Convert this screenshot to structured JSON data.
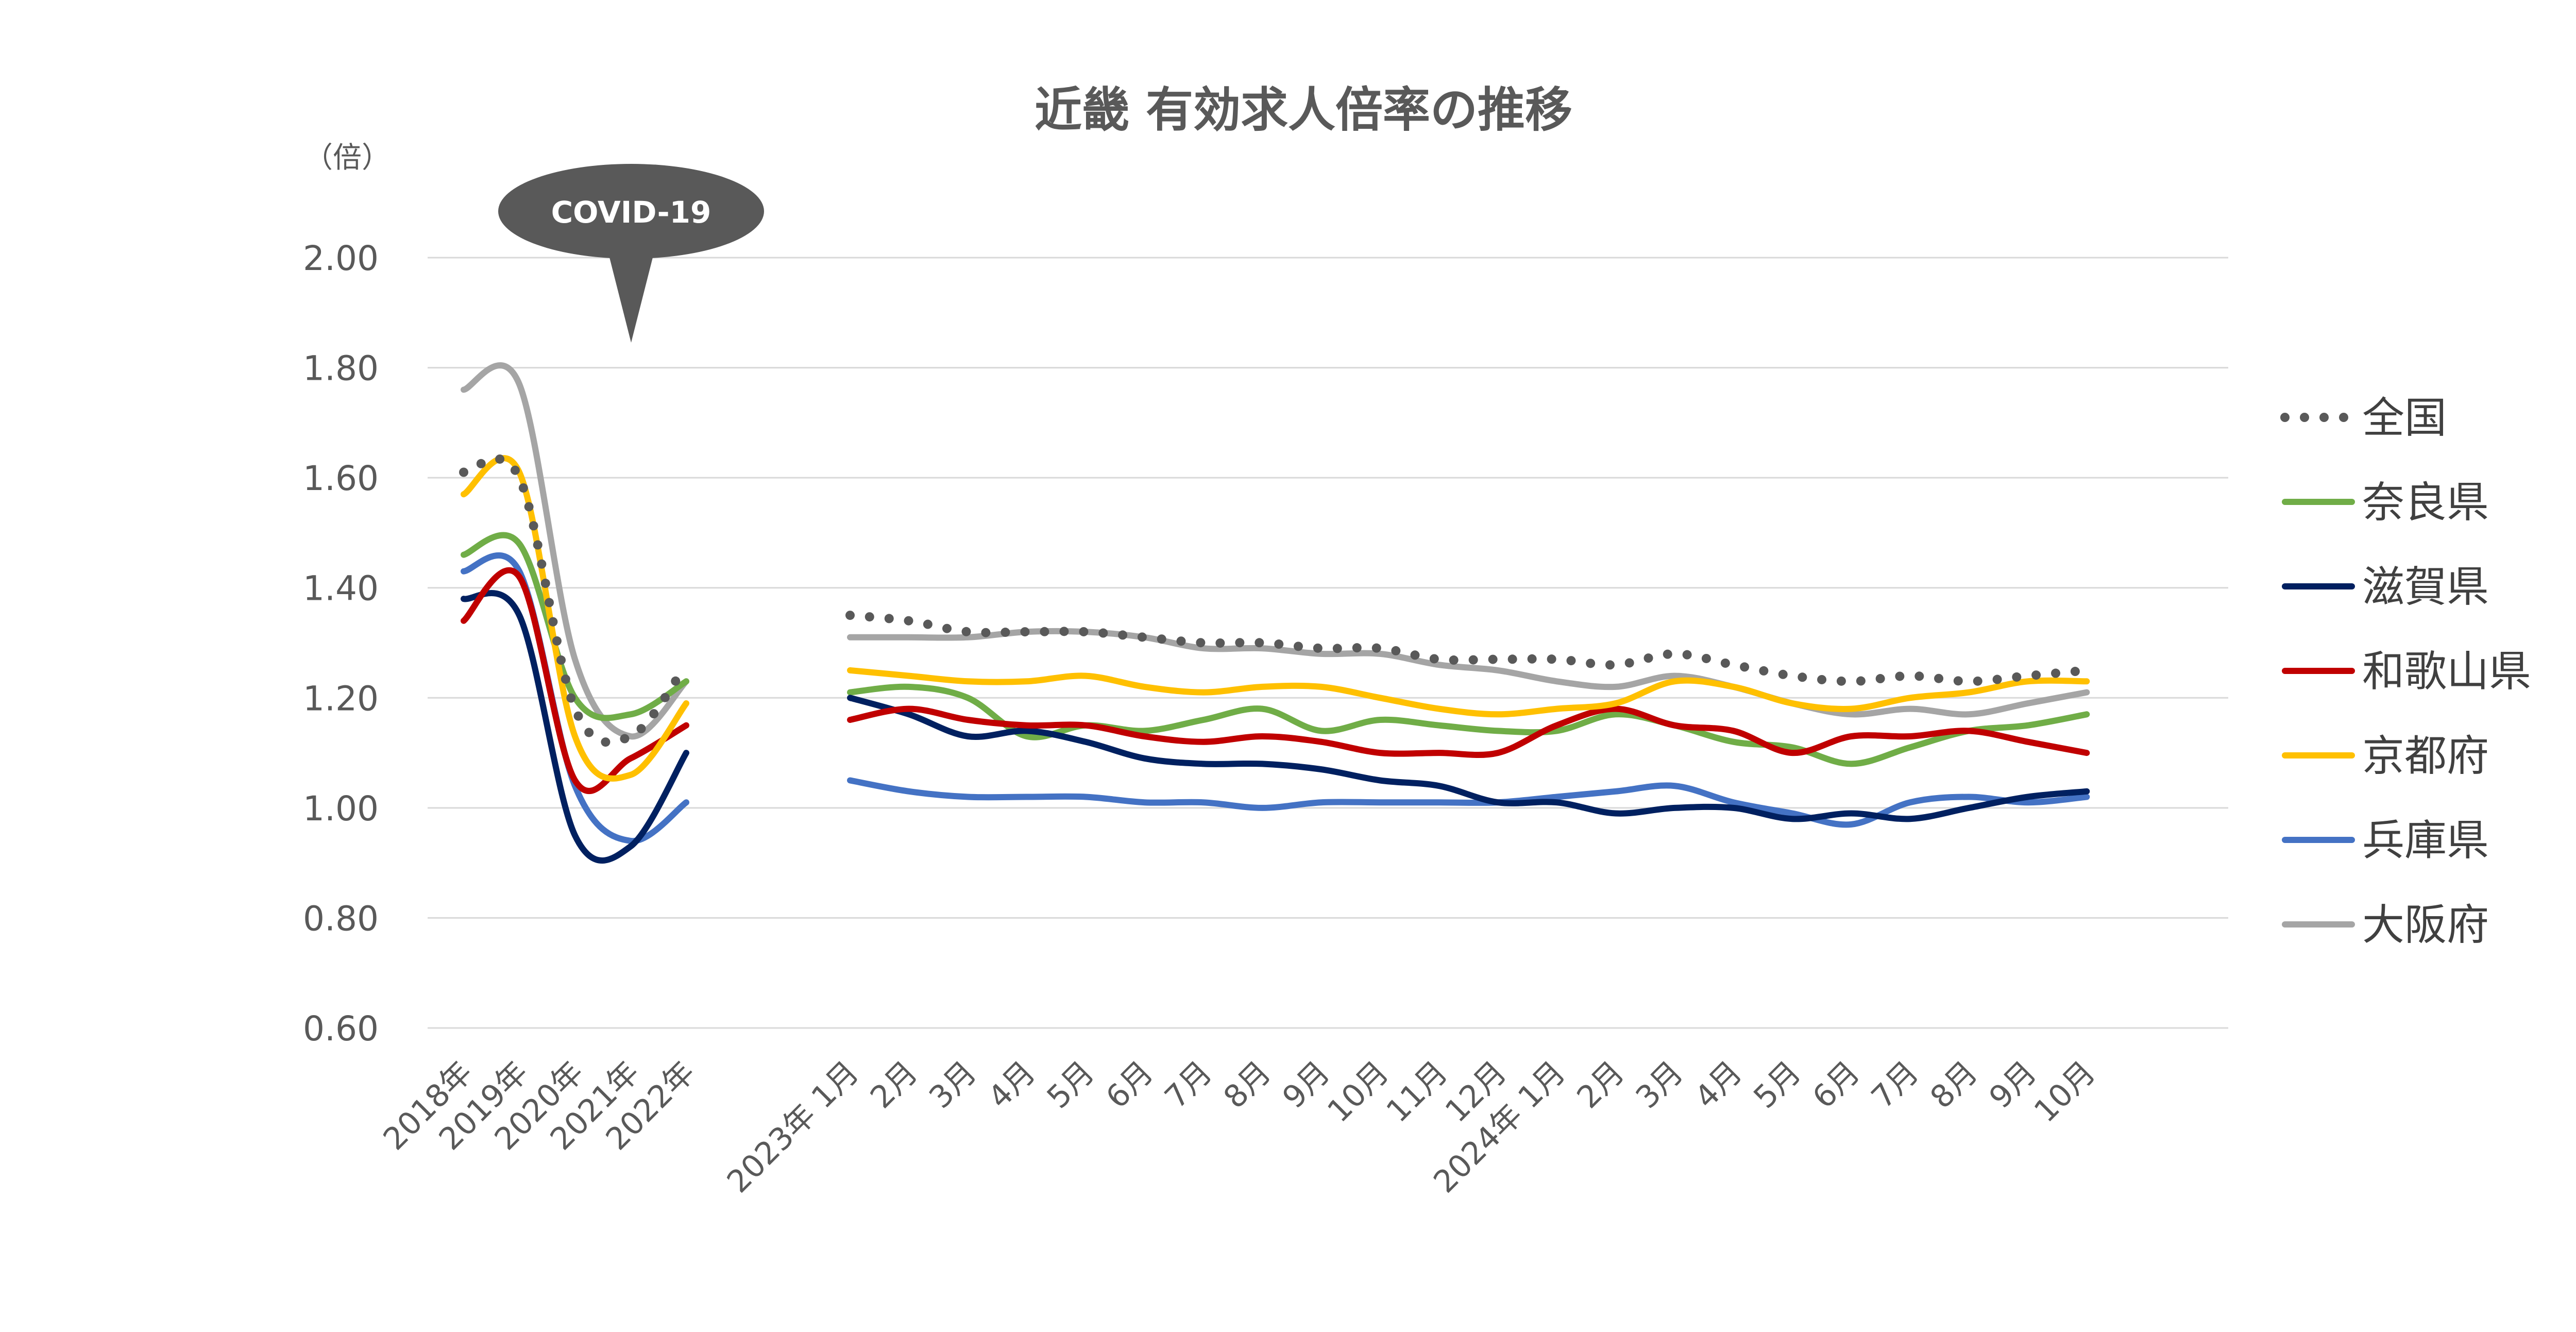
{
  "chart_data": {
    "type": "line",
    "title": "近畿 有効求人倍率の推移",
    "y_unit_label": "（倍）",
    "ylim": [
      0.6,
      2.0
    ],
    "yticks": [
      "2.00",
      "1.80",
      "1.60",
      "1.40",
      "1.20",
      "1.00",
      "0.80",
      "0.60"
    ],
    "ytick_values": [
      2.0,
      1.8,
      1.6,
      1.4,
      1.2,
      1.0,
      0.8,
      0.6
    ],
    "grid": true,
    "legend_position": "right",
    "annotation": "COVID-19",
    "categories_annual": [
      "2018年",
      "2019年",
      "2020年",
      "2021年",
      "2022年"
    ],
    "categories_monthly": [
      "2023年 1月",
      "2月",
      "3月",
      "4月",
      "5月",
      "6月",
      "7月",
      "8月",
      "9月",
      "10月",
      "11月",
      "12月",
      "2024年 1月",
      "2月",
      "3月",
      "4月",
      "5月",
      "6月",
      "7月",
      "8月",
      "9月",
      "10月"
    ],
    "series": [
      {
        "name": "全国",
        "color": "#595959",
        "style": "dotted",
        "annual": [
          1.61,
          1.6,
          1.18,
          1.13,
          1.26
        ],
        "monthly": [
          1.35,
          1.34,
          1.32,
          1.32,
          1.32,
          1.31,
          1.3,
          1.3,
          1.29,
          1.29,
          1.27,
          1.27,
          1.27,
          1.26,
          1.28,
          1.26,
          1.24,
          1.23,
          1.24,
          1.23,
          1.24,
          1.25
        ]
      },
      {
        "name": "奈良県",
        "color": "#70ad47",
        "style": "solid",
        "annual": [
          1.46,
          1.48,
          1.2,
          1.17,
          1.23
        ],
        "monthly": [
          1.21,
          1.22,
          1.2,
          1.13,
          1.15,
          1.14,
          1.16,
          1.18,
          1.14,
          1.16,
          1.15,
          1.14,
          1.14,
          1.17,
          1.15,
          1.12,
          1.11,
          1.08,
          1.11,
          1.14,
          1.15,
          1.17
        ]
      },
      {
        "name": "滋賀県",
        "color": "#002060",
        "style": "solid",
        "annual": [
          1.38,
          1.35,
          0.95,
          0.93,
          1.1
        ],
        "monthly": [
          1.2,
          1.17,
          1.13,
          1.14,
          1.12,
          1.09,
          1.08,
          1.08,
          1.07,
          1.05,
          1.04,
          1.01,
          1.01,
          0.99,
          1.0,
          1.0,
          0.98,
          0.99,
          0.98,
          1.0,
          1.02,
          1.03
        ]
      },
      {
        "name": "和歌山県",
        "color": "#c00000",
        "style": "solid",
        "annual": [
          1.34,
          1.42,
          1.05,
          1.09,
          1.15
        ],
        "monthly": [
          1.16,
          1.18,
          1.16,
          1.15,
          1.15,
          1.13,
          1.12,
          1.13,
          1.12,
          1.1,
          1.1,
          1.1,
          1.15,
          1.18,
          1.15,
          1.14,
          1.1,
          1.13,
          1.13,
          1.14,
          1.12,
          1.1
        ]
      },
      {
        "name": "京都府",
        "color": "#ffc000",
        "style": "solid",
        "annual": [
          1.57,
          1.61,
          1.13,
          1.06,
          1.19
        ],
        "monthly": [
          1.25,
          1.24,
          1.23,
          1.23,
          1.24,
          1.22,
          1.21,
          1.22,
          1.22,
          1.2,
          1.18,
          1.17,
          1.18,
          1.19,
          1.23,
          1.22,
          1.19,
          1.18,
          1.2,
          1.21,
          1.23,
          1.23
        ]
      },
      {
        "name": "兵庫県",
        "color": "#4472c4",
        "style": "solid",
        "annual": [
          1.43,
          1.43,
          1.04,
          0.94,
          1.01
        ],
        "monthly": [
          1.05,
          1.03,
          1.02,
          1.02,
          1.02,
          1.01,
          1.01,
          1.0,
          1.01,
          1.01,
          1.01,
          1.01,
          1.02,
          1.03,
          1.04,
          1.01,
          0.99,
          0.97,
          1.01,
          1.02,
          1.01,
          1.02
        ]
      },
      {
        "name": "大阪府",
        "color": "#a5a5a5",
        "style": "solid",
        "annual": [
          1.76,
          1.77,
          1.27,
          1.13,
          1.23
        ],
        "monthly": [
          1.31,
          1.31,
          1.31,
          1.32,
          1.32,
          1.31,
          1.29,
          1.29,
          1.28,
          1.28,
          1.26,
          1.25,
          1.23,
          1.22,
          1.24,
          1.22,
          1.19,
          1.17,
          1.18,
          1.17,
          1.19,
          1.21
        ]
      }
    ]
  }
}
